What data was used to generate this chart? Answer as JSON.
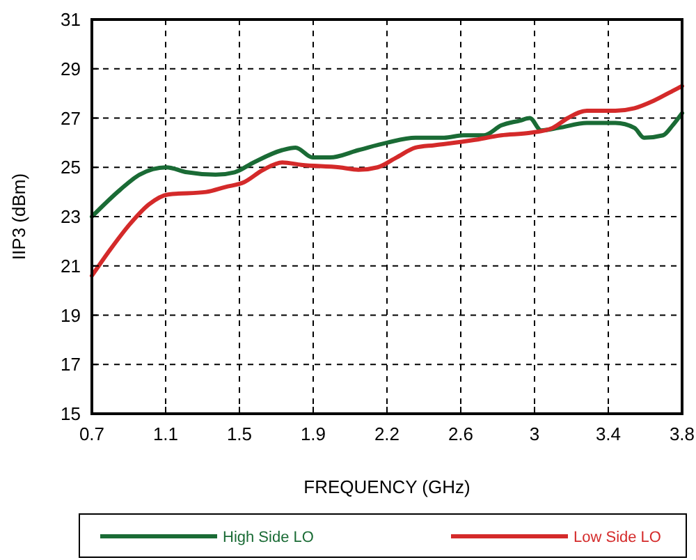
{
  "chart_data": {
    "type": "line",
    "xlabel": "FREQUENCY (GHz)",
    "ylabel": "IIP3 (dBm)",
    "xlim": [
      0.7,
      3.8
    ],
    "xticks": [
      0.7,
      {
        "value": 1.0875,
        "label": "1.1"
      },
      {
        "value": 1.475,
        "label": "1.5"
      },
      {
        "value": 1.8625,
        "label": "1.9"
      },
      {
        "value": 2.25,
        "label": "2.2"
      },
      {
        "value": 2.6375,
        "label": "2.6"
      },
      {
        "value": 3.025,
        "label": "3"
      },
      {
        "value": 3.4125,
        "label": "3.4"
      },
      3.8
    ],
    "ylim": [
      15,
      31
    ],
    "yticks": [
      15,
      17,
      19,
      21,
      23,
      25,
      27,
      29,
      31
    ],
    "grid": true,
    "legend": "bottom",
    "line_style": "solid",
    "series": [
      {
        "name": "High Side LO",
        "color": "#1a6b35",
        "x": [
          0.7,
          0.85,
          0.95,
          1.09,
          1.2,
          1.35,
          1.45,
          1.55,
          1.7,
          1.77,
          1.86,
          1.95,
          2.1,
          2.25,
          2.4,
          2.55,
          2.65,
          2.76,
          2.85,
          2.95,
          3.0,
          3.06,
          3.15,
          3.3,
          3.45,
          3.55,
          3.6,
          3.7,
          3.75,
          3.8
        ],
        "values": [
          23.0,
          24.1,
          24.7,
          25.0,
          24.8,
          24.7,
          24.8,
          25.2,
          25.7,
          25.8,
          25.4,
          25.4,
          25.7,
          26.0,
          26.2,
          26.2,
          26.3,
          26.3,
          26.7,
          26.9,
          27.0,
          26.5,
          26.6,
          26.8,
          26.8,
          26.6,
          26.2,
          26.3,
          26.7,
          27.2
        ]
      },
      {
        "name": "Low Side LO",
        "color": "#d42a2a",
        "x": [
          0.7,
          0.8,
          0.9,
          1.0,
          1.1,
          1.3,
          1.4,
          1.5,
          1.6,
          1.7,
          1.8,
          2.0,
          2.1,
          2.2,
          2.3,
          2.4,
          2.5,
          2.7,
          2.85,
          3.0,
          3.12,
          3.2,
          3.3,
          3.45,
          3.55,
          3.65,
          3.75,
          3.8
        ],
        "values": [
          20.6,
          21.7,
          22.7,
          23.5,
          23.9,
          24.0,
          24.2,
          24.4,
          24.9,
          25.2,
          25.1,
          25.0,
          24.9,
          25.0,
          25.4,
          25.8,
          25.9,
          26.1,
          26.3,
          26.4,
          26.6,
          27.0,
          27.3,
          27.3,
          27.4,
          27.7,
          28.1,
          28.3
        ]
      }
    ]
  }
}
